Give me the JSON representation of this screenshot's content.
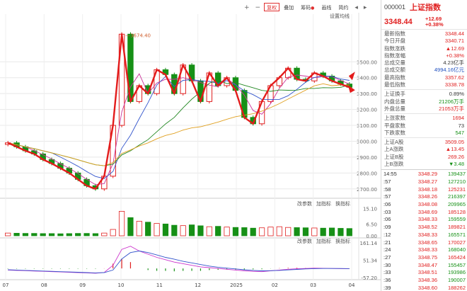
{
  "toolbar": {
    "buttons": [
      {
        "label": "+",
        "type": "icon",
        "name": "zoom-in-button"
      },
      {
        "label": "−",
        "type": "icon",
        "name": "zoom-out-button"
      },
      {
        "label": "复权",
        "type": "active",
        "name": "adjust-button"
      },
      {
        "label": "叠加",
        "type": "normal",
        "name": "overlay-button"
      },
      {
        "label": "筹码",
        "type": "dot",
        "name": "chips-button"
      },
      {
        "label": "画线",
        "type": "normal",
        "name": "draw-button"
      },
      {
        "label": "简约",
        "type": "normal",
        "name": "simple-button"
      },
      {
        "label": "◂",
        "type": "icon",
        "name": "nav-left-button"
      },
      {
        "label": "▸",
        "type": "icon",
        "name": "nav-right-button"
      }
    ],
    "settings_label": "设置均线",
    "indicator_controls": [
      "改参数",
      "加指标",
      "换指标"
    ]
  },
  "chart_data": [
    {
      "type": "candlestick",
      "title": "",
      "peak_annotation": "3674.40",
      "xlabel": "",
      "ylabel": "",
      "ylim": [
        2650,
        3800
      ],
      "y_ticks": [
        "3500.00",
        "3400.00",
        "3300.00",
        "3200.00",
        "3100.00",
        "3000.00",
        "2900.00",
        "2800.00",
        "2700.00"
      ],
      "x_ticks": [
        "07",
        "08",
        "09",
        "10",
        "11",
        "12",
        "2025",
        "02",
        "03",
        "04"
      ],
      "close_values": [
        2990,
        2965,
        2940,
        2920,
        2885,
        2860,
        2830,
        2800,
        2760,
        2720,
        2700,
        2780,
        3100,
        3674,
        3250,
        3350,
        3300,
        3450,
        3420,
        3300,
        3480,
        3380,
        3250,
        3430,
        3350,
        3400,
        3320,
        3150,
        3110,
        3250,
        3350,
        3400,
        3460,
        3390,
        3380,
        3430,
        3410,
        3380,
        3360,
        3340
      ],
      "grid": true
    },
    {
      "type": "bar",
      "title": "",
      "y_ticks": [
        "15.10",
        "6.50",
        "0.00"
      ],
      "ylim": [
        0,
        16
      ],
      "values": [
        1.5,
        1.4,
        1.3,
        1.3,
        1.2,
        1.2,
        1.1,
        1.2,
        1.3,
        1.3,
        1.2,
        1.5,
        3.5,
        13.5,
        10,
        8,
        7.5,
        6.8,
        6.5,
        5.8,
        5.6,
        6.0,
        5.5,
        5.0,
        5.2,
        4.8,
        4.6,
        4.5,
        4.2,
        4.4,
        4.8,
        5.0,
        4.6,
        4.5,
        4.4,
        4.3,
        4.2,
        4.3,
        4.1,
        4.0
      ]
    },
    {
      "type": "line",
      "title": "",
      "y_ticks": [
        "161.14",
        "51.34",
        "-57.20"
      ],
      "ylim": [
        -57.2,
        161.14
      ],
      "series": [
        {
          "values": [
            -10,
            -12,
            -14,
            -16,
            -18,
            -20,
            -22,
            -24,
            -26,
            -28,
            -30,
            -25,
            20,
            120,
            140,
            110,
            90,
            70,
            55,
            40,
            30,
            20,
            10,
            5,
            0,
            -5,
            -10,
            -15,
            -18,
            -20,
            -15,
            -10,
            -5,
            -2,
            0,
            2,
            1,
            0,
            -1,
            -2
          ]
        },
        {
          "values": [
            -8,
            -10,
            -12,
            -14,
            -16,
            -18,
            -20,
            -22,
            -24,
            -26,
            -28,
            -26,
            -10,
            60,
            100,
            110,
            100,
            85,
            70,
            58,
            45,
            35,
            25,
            15,
            8,
            2,
            -3,
            -8,
            -12,
            -15,
            -14,
            -12,
            -9,
            -6,
            -3,
            -1,
            0,
            0,
            0,
            -1
          ]
        }
      ]
    }
  ],
  "info": {
    "code": "000001",
    "name": "上证指数",
    "price": "3348.44",
    "change": "+12.69",
    "change_pct": "+0.38%",
    "fields": [
      {
        "k": "最新指数",
        "v": "3348.44",
        "c": "red"
      },
      {
        "k": "今日开盘",
        "v": "3340.71",
        "c": "red"
      },
      {
        "k": "指数涨跌",
        "v": "▲12.69",
        "c": "red"
      },
      {
        "k": "指数涨幅",
        "v": "+0.38%",
        "c": "red"
      },
      {
        "k": "总成交量",
        "v": "4.23亿手",
        "c": "dark"
      },
      {
        "k": "总成交额",
        "v": "4994.16亿元",
        "c": "blue"
      },
      {
        "k": "最高指数",
        "v": "3357.62",
        "c": "red"
      },
      {
        "k": "最低指数",
        "v": "3338.78",
        "c": "red"
      }
    ],
    "fields2": [
      {
        "k": "上证换手",
        "v": "0.89%",
        "c": "dark"
      },
      {
        "k": "内盘总量",
        "v": "21206万手",
        "c": "green"
      },
      {
        "k": "外盘总量",
        "v": "21053万手",
        "c": "red"
      }
    ],
    "fields3": [
      {
        "k": "上涨家数",
        "v": "1694",
        "c": "red"
      },
      {
        "k": "平盘家数",
        "v": "73",
        "c": "dark"
      },
      {
        "k": "下跌家数",
        "v": "547",
        "c": "green"
      }
    ],
    "fields4": [
      {
        "k": "上证A股",
        "v": "3509.05",
        "c": "red"
      },
      {
        "k": "上A涨跌",
        "v": "▲13.45",
        "c": "red"
      },
      {
        "k": "上证B股",
        "v": "269.26",
        "c": "red"
      },
      {
        "k": "上B涨跌",
        "v": "▼3.48",
        "c": "green"
      }
    ],
    "ticks": [
      {
        "t": "14:55",
        "p": "3348.29",
        "v": "139437",
        "c": "green"
      },
      {
        "t": ":57",
        "p": "3348.27",
        "v": "127210",
        "c": "green"
      },
      {
        "t": ":58",
        "p": "3348.18",
        "v": "125231",
        "c": "red"
      },
      {
        "t": ":57",
        "p": "3348.26",
        "v": "216397",
        "c": "green"
      },
      {
        "t": ":06",
        "p": "3348.08",
        "v": "209965",
        "c": "green"
      },
      {
        "t": ":03",
        "p": "3348.69",
        "v": "185128",
        "c": "red"
      },
      {
        "t": ":06",
        "p": "3348.33",
        "v": "159559",
        "c": "green"
      },
      {
        "t": ":09",
        "p": "3348.52",
        "v": "189821",
        "c": "red"
      },
      {
        "t": ":12",
        "p": "3348.33",
        "v": "165571",
        "c": "green"
      },
      {
        "t": ":21",
        "p": "3348.65",
        "v": "170027",
        "c": "red"
      },
      {
        "t": ":24",
        "p": "3348.33",
        "v": "168040",
        "c": "green"
      },
      {
        "t": ":27",
        "p": "3348.75",
        "v": "165424",
        "c": "red"
      },
      {
        "t": ":30",
        "p": "3348.47",
        "v": "155457",
        "c": "green"
      },
      {
        "t": ":33",
        "p": "3348.51",
        "v": "193986",
        "c": "green"
      },
      {
        "t": ":36",
        "p": "3348.36",
        "v": "190007",
        "c": "green"
      },
      {
        "t": ":39",
        "p": "3348.60",
        "v": "188262",
        "c": "red"
      }
    ]
  }
}
